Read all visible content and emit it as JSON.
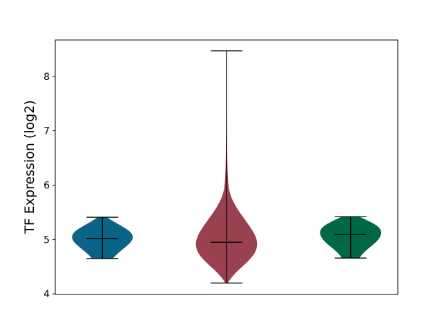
{
  "chart_data": {
    "type": "violin",
    "title": "",
    "xlabel": "",
    "ylabel": "TF Expression (log2)",
    "ylim": [
      3.99,
      8.67
    ],
    "xlim": [
      0.62,
      3.38
    ],
    "yticks": [
      4,
      5,
      6,
      7,
      8
    ],
    "grid": false,
    "series": [
      {
        "position": 1,
        "color": "#0b6485",
        "min": 4.65,
        "max": 5.41,
        "mean": 5.02,
        "density": [
          [
            4.65,
            0.33
          ],
          [
            4.75,
            0.5
          ],
          [
            4.85,
            0.72
          ],
          [
            4.95,
            0.92
          ],
          [
            5.05,
            1.0
          ],
          [
            5.15,
            0.9
          ],
          [
            5.25,
            0.62
          ],
          [
            5.35,
            0.3
          ],
          [
            5.41,
            0.15
          ]
        ]
      },
      {
        "position": 2,
        "color": "#9a4150",
        "min": 4.2,
        "max": 8.47,
        "mean": 4.95,
        "density": [
          [
            4.2,
            0.04
          ],
          [
            4.3,
            0.15
          ],
          [
            4.45,
            0.4
          ],
          [
            4.6,
            0.7
          ],
          [
            4.75,
            0.92
          ],
          [
            4.9,
            1.0
          ],
          [
            5.05,
            0.95
          ],
          [
            5.2,
            0.8
          ],
          [
            5.4,
            0.55
          ],
          [
            5.6,
            0.3
          ],
          [
            5.8,
            0.13
          ],
          [
            6.0,
            0.05
          ],
          [
            6.5,
            0.02
          ],
          [
            7.5,
            0.01
          ],
          [
            8.47,
            0.005
          ]
        ]
      },
      {
        "position": 3,
        "color": "#006843",
        "min": 4.66,
        "max": 5.42,
        "mean": 5.09,
        "density": [
          [
            4.66,
            0.28
          ],
          [
            4.75,
            0.4
          ],
          [
            4.85,
            0.6
          ],
          [
            4.95,
            0.82
          ],
          [
            5.05,
            0.96
          ],
          [
            5.15,
            1.0
          ],
          [
            5.25,
            0.88
          ],
          [
            5.35,
            0.55
          ],
          [
            5.42,
            0.28
          ]
        ]
      }
    ]
  }
}
